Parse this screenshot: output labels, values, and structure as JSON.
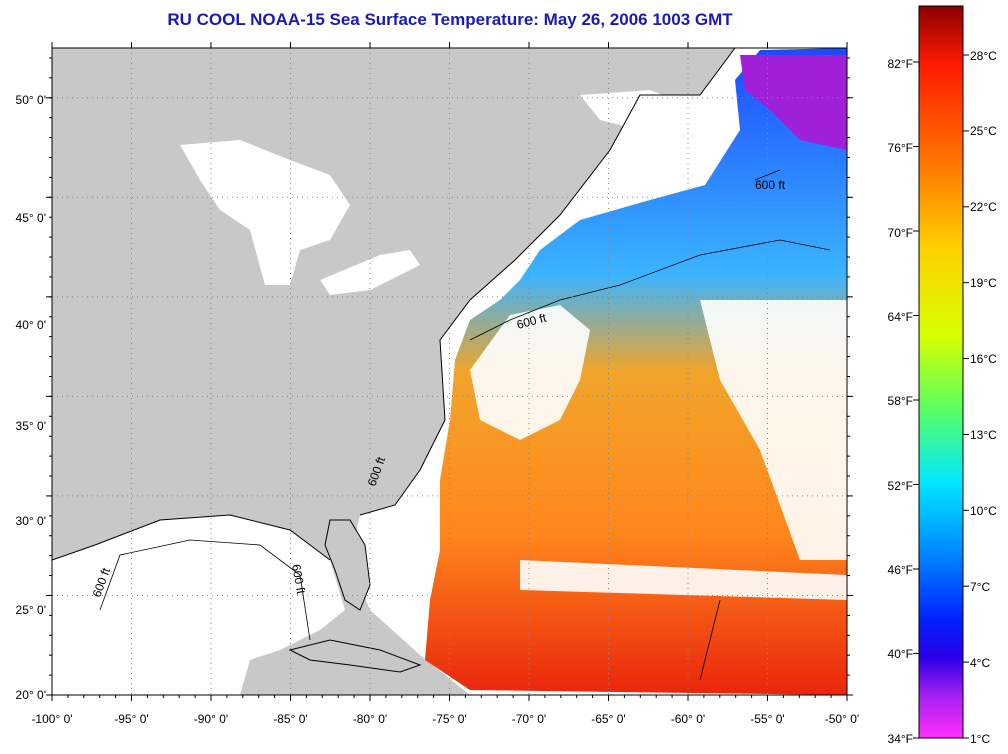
{
  "title": "RU COOL  NOAA-15  Sea Surface Temperature:  May 26, 2006 1003 GMT",
  "map": {
    "lon_range": [
      -100,
      -50
    ],
    "lat_range": [
      20,
      52.5
    ],
    "lon_ticks": [
      "-100° 0'",
      "-95° 0'",
      "-90° 0'",
      "-85° 0'",
      "-80° 0'",
      "-75° 0'",
      "-70° 0'",
      "-65° 0'",
      "-60° 0'",
      "-55° 0'",
      "-50° 0'"
    ],
    "lat_ticks": [
      "20° 0'",
      "25° 0'",
      "30° 0'",
      "35° 0'",
      "40° 0'",
      "45° 0'",
      "50° 0'"
    ],
    "contour_label": "600 ft",
    "colors": {
      "land": "#c8c8c8",
      "water_background": "#ffffff",
      "coastline": "#000000"
    }
  },
  "colorbar": {
    "fahrenheit_labels": [
      "34°F",
      "40°F",
      "46°F",
      "52°F",
      "58°F",
      "64°F",
      "70°F",
      "76°F",
      "82°F"
    ],
    "celsius_labels": [
      "1°C",
      "4°C",
      "7°C",
      "10°C",
      "13°C",
      "16°C",
      "19°C",
      "22°C",
      "25°C",
      "28°C"
    ],
    "gradient_top_to_bottom": [
      "#8b0000",
      "#ff1a00",
      "#ff7a00",
      "#ffd000",
      "#d7ff00",
      "#5aff60",
      "#00e8ff",
      "#0090ff",
      "#0020ff",
      "#2a00e6",
      "#a020f0",
      "#ff30ff"
    ]
  }
}
